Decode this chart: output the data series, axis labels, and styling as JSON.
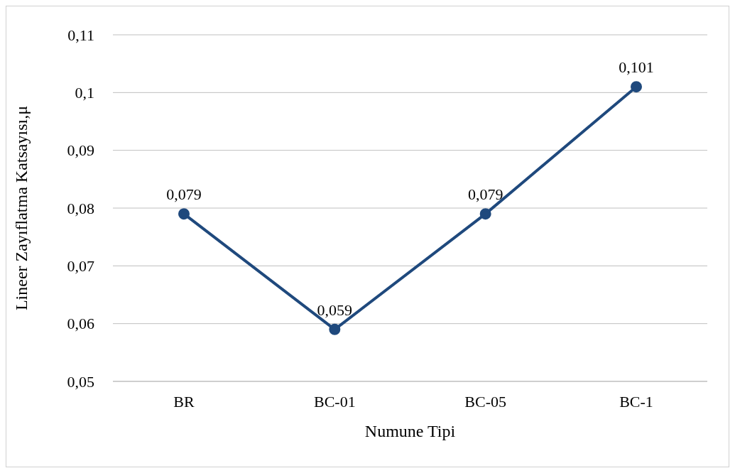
{
  "chart_data": {
    "type": "line",
    "xlabel": "Numune Tipi",
    "ylabel": "Lineer Zayıflatma Katsayısı,μ",
    "categories": [
      "BR",
      "BC-01",
      "BC-05",
      "BC-1"
    ],
    "series": [
      {
        "color": "#1f497d",
        "values": [
          0.079,
          0.059,
          0.079,
          0.101
        ],
        "value_labels": [
          "0,079",
          "0,059",
          "0,079",
          "0,101"
        ]
      }
    ],
    "ylim": [
      0.05,
      0.11
    ],
    "yticks": [
      {
        "value": 0.05,
        "label": "0,05"
      },
      {
        "value": 0.06,
        "label": "0,06"
      },
      {
        "value": 0.07,
        "label": "0,07"
      },
      {
        "value": 0.08,
        "label": "0,08"
      },
      {
        "value": 0.09,
        "label": "0,09"
      },
      {
        "value": 0.1,
        "label": "0,1"
      },
      {
        "value": 0.11,
        "label": "0,11"
      }
    ],
    "grid": "y",
    "marker": "circle",
    "line_style": "solid",
    "legend": false
  }
}
